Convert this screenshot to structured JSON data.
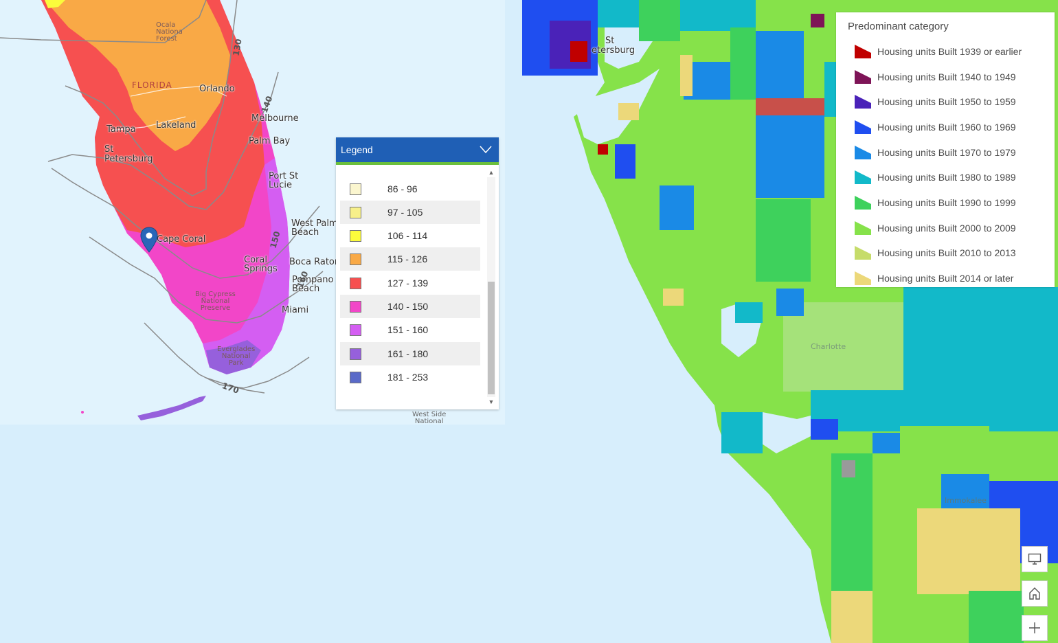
{
  "left_map": {
    "places": [
      {
        "name": "Ocala National Forest",
        "lines": [
          "Ocala",
          "Nationa",
          "Forest"
        ]
      },
      {
        "name": "FLORIDA"
      },
      {
        "name": "Orlando"
      },
      {
        "name": "Tampa"
      },
      {
        "name": "Lakeland"
      },
      {
        "name": "Melbourne"
      },
      {
        "name": "St Petersburg",
        "lines": [
          "St",
          "Petersburg"
        ]
      },
      {
        "name": "Palm Bay"
      },
      {
        "name": "Port St Lucie",
        "lines": [
          "Port St",
          "Lucie"
        ]
      },
      {
        "name": "West Palm Beach",
        "lines": [
          "West Palm",
          "Beach"
        ]
      },
      {
        "name": "Cape Coral"
      },
      {
        "name": "Boca Raton"
      },
      {
        "name": "Coral Springs",
        "lines": [
          "Coral",
          "Springs"
        ]
      },
      {
        "name": "Pompano Beach",
        "lines": [
          "Pompano",
          "Beach"
        ]
      },
      {
        "name": "Big Cypress National Preserve",
        "lines": [
          "Big Cypress",
          "National",
          "Preserve"
        ]
      },
      {
        "name": "Miami"
      },
      {
        "name": "Everglades National Park",
        "lines": [
          "Everglades",
          "National",
          "Park"
        ]
      },
      {
        "name": "West Side National",
        "lines": [
          "West Side",
          "National"
        ]
      }
    ],
    "contour_labels": [
      "130",
      "140",
      "150",
      "160",
      "170"
    ],
    "pin_icon": "map-pin-icon"
  },
  "legend": {
    "title": "Legend",
    "items": [
      {
        "label": "86 - 96",
        "color": "#fbf6cf"
      },
      {
        "label": "97 - 105",
        "color": "#f7f08a"
      },
      {
        "label": "106 - 114",
        "color": "#fbfb3c"
      },
      {
        "label": "115 - 126",
        "color": "#f9a946"
      },
      {
        "label": "127 - 139",
        "color": "#f65050"
      },
      {
        "label": "140 - 150",
        "color": "#f246c8"
      },
      {
        "label": "151 - 160",
        "color": "#d45ef2"
      },
      {
        "label": "161 - 180",
        "color": "#9660dc"
      },
      {
        "label": "181 - 253",
        "color": "#5a6ac8"
      }
    ]
  },
  "right_map": {
    "places": [
      {
        "name": "St Petersburg",
        "lines": [
          "St",
          "etersburg"
        ]
      },
      {
        "name": "Charlotte"
      },
      {
        "name": "Immokalee",
        "lines": [
          "Immokalee"
        ]
      }
    ]
  },
  "category_legend": {
    "title": "Predominant category",
    "items": [
      {
        "label": "Housing units Built 1939 or earlier",
        "color": "#c00000"
      },
      {
        "label": "Housing units Built 1940 to 1949",
        "color": "#7e1457"
      },
      {
        "label": "Housing units Built 1950 to 1959",
        "color": "#4a22b8"
      },
      {
        "label": "Housing units Built 1960 to 1969",
        "color": "#1f4ef0"
      },
      {
        "label": "Housing units Built 1970 to 1979",
        "color": "#1a8ae6"
      },
      {
        "label": "Housing units Built 1980 to 1989",
        "color": "#12b9c9"
      },
      {
        "label": "Housing units Built 1990 to 1999",
        "color": "#3ed15c"
      },
      {
        "label": "Housing units Built 2000 to 2009",
        "color": "#86e24a"
      },
      {
        "label": "Housing units Built 2010 to 2013",
        "color": "#c6dc6a"
      },
      {
        "label": "Housing units Built 2014 or later",
        "color": "#ecd87a"
      }
    ]
  },
  "controls": [
    {
      "icon": "monitor-icon"
    },
    {
      "icon": "home-icon"
    },
    {
      "icon": "zoom-in-icon"
    }
  ]
}
